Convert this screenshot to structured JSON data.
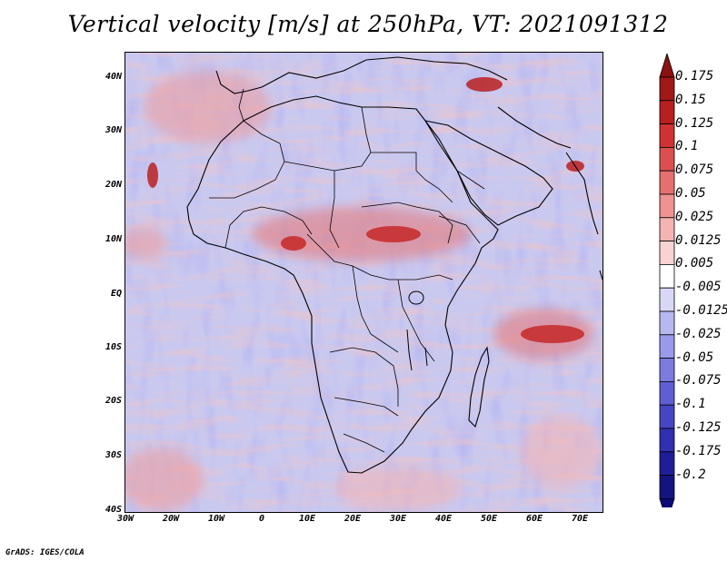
{
  "title": "Vertical velocity [m/s] at 250hPa, VT: 2021091312",
  "credit": "GrADS: IGES/COLA",
  "variable": "Vertical velocity",
  "units": "m/s",
  "level": "250hPa",
  "valid_time": "2021091312",
  "axes": {
    "lat_labels": [
      "40N",
      "30N",
      "20N",
      "10N",
      "EQ",
      "10S",
      "20S",
      "30S",
      "40S"
    ],
    "lon_labels": [
      "30W",
      "20W",
      "10W",
      "0",
      "10E",
      "20E",
      "30E",
      "40E",
      "50E",
      "60E",
      "70E"
    ]
  },
  "colorbar": {
    "labels": [
      "0.175",
      "0.15",
      "0.125",
      "0.1",
      "0.075",
      "0.05",
      "0.025",
      "0.0125",
      "0.005",
      "-0.005",
      "-0.0125",
      "-0.025",
      "-0.05",
      "-0.075",
      "-0.1",
      "-0.125",
      "-0.175",
      "-0.2"
    ],
    "colors": [
      "#a01818",
      "#b81f1f",
      "#cf3232",
      "#dc4f4f",
      "#e67070",
      "#ee9292",
      "#f4b4b4",
      "#f9d3d3",
      "#ffffff",
      "#d8d8f6",
      "#b8b8f0",
      "#9a9aea",
      "#7c7ce0",
      "#5f5fd4",
      "#4646c4",
      "#3030b0",
      "#1e1e98",
      "#141480"
    ],
    "tip_top_color": "#8c1010",
    "tip_bottom_color": "#0a0a78"
  }
}
